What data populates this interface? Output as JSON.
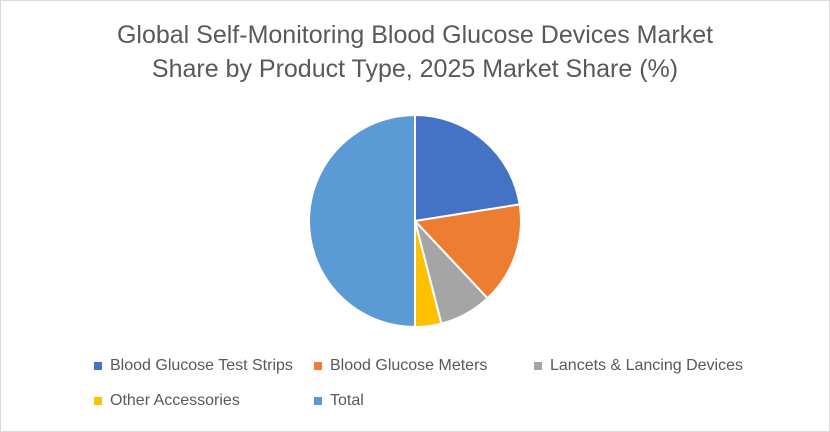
{
  "chart_data": {
    "type": "pie",
    "title_lines": [
      "Global Self-Monitoring Blood Glucose Devices Market",
      "Share by Product Type, 2025 Market Share (%)"
    ],
    "categories": [
      "Blood Glucose Test Strips",
      "Blood Glucose Meters",
      "Lancets & Lancing Devices",
      "Other Accessories",
      "Total"
    ],
    "values": [
      22.5,
      15.5,
      8,
      4,
      50
    ],
    "unit": "%",
    "colors": [
      "#4472c4",
      "#ed7d31",
      "#a5a5a5",
      "#ffc000",
      "#5b9bd5"
    ],
    "legend_position": "bottom"
  }
}
